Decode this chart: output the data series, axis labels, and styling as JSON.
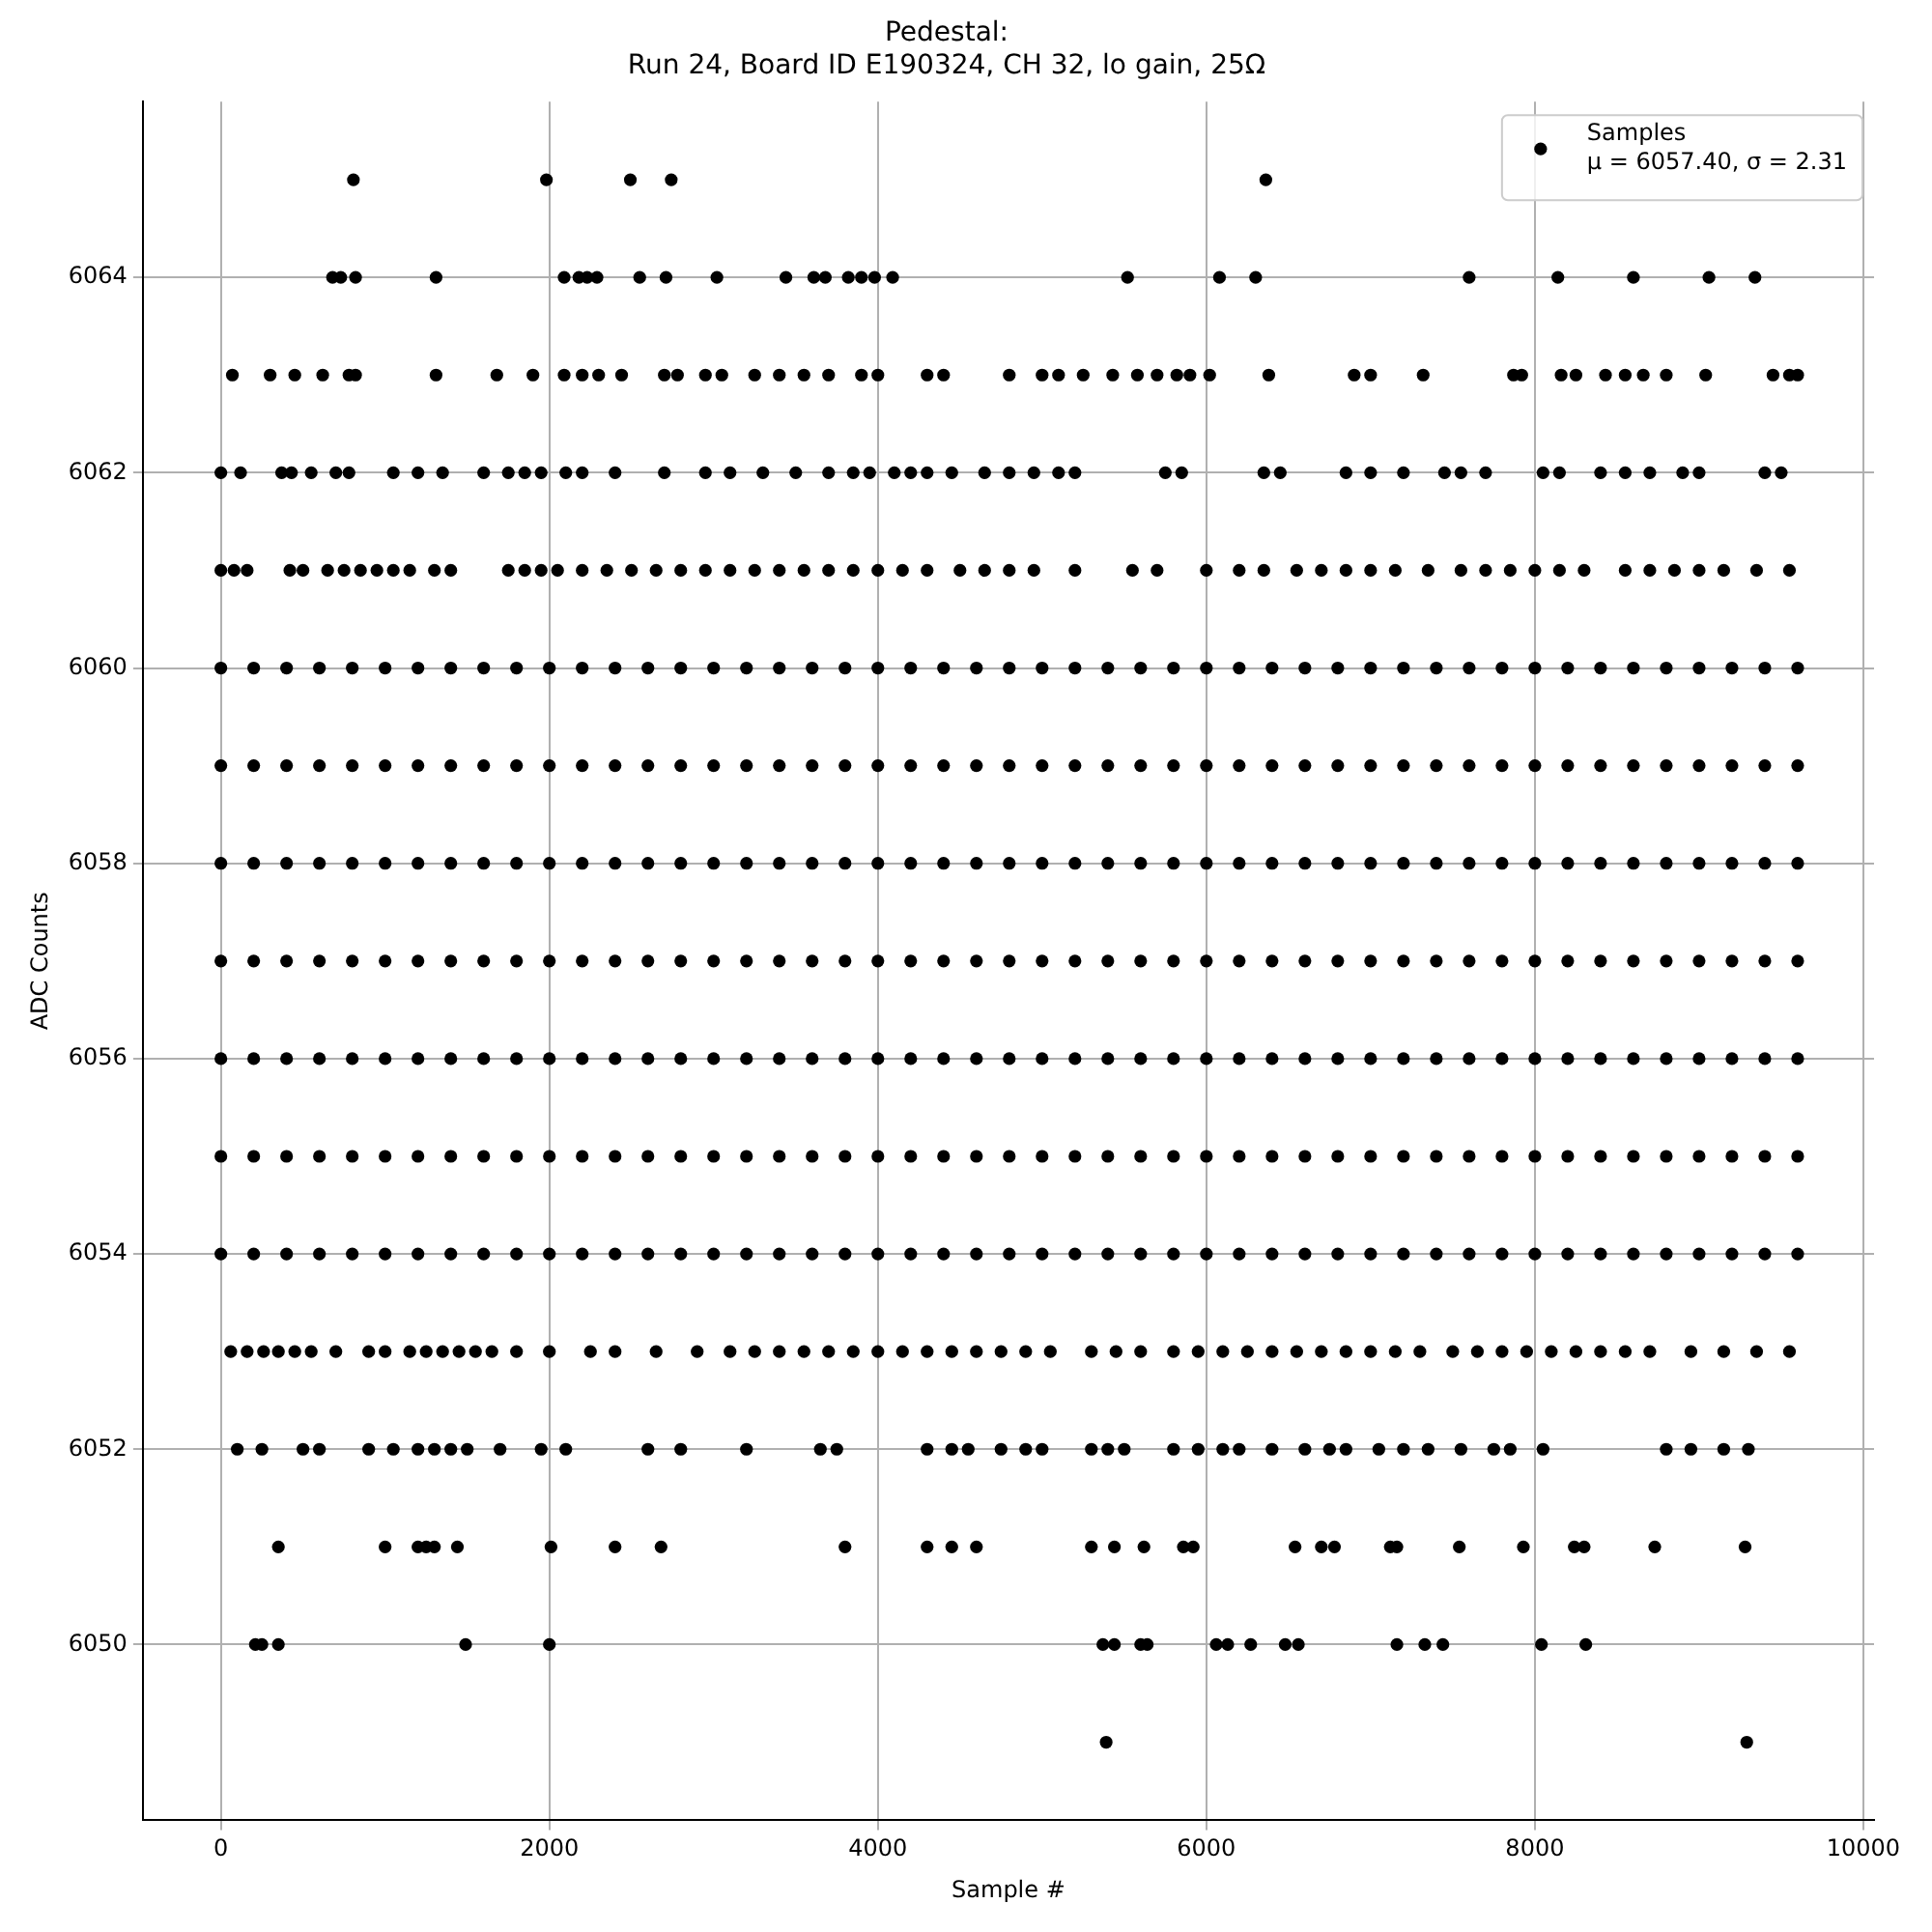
{
  "chart_data": {
    "type": "scatter",
    "title": "Pedestal:\nRun 24, Board ID E190324, CH 32, lo gain, 25Ω",
    "xlabel": "Sample #",
    "ylabel": "ADC Counts",
    "xlim": [
      -475,
      10065
    ],
    "xticks": [
      0,
      2000,
      4000,
      6000,
      8000,
      10000
    ],
    "ylim": [
      6048.2,
      6065.8
    ],
    "yticks": [
      6050,
      6052,
      6054,
      6056,
      6058,
      6060,
      6062,
      6064
    ],
    "grid": true,
    "legend": "top right",
    "marker": "circle",
    "annotations": [
      "μ = 6057.40, σ = 2.31"
    ],
    "series": [
      {
        "name": "Samples",
        "color": "#000000",
        "x": [
          0,
          200,
          400,
          600,
          800,
          1000,
          1200,
          1400,
          1600,
          1800,
          2000,
          2200,
          2400,
          2600,
          2800,
          3000,
          3200,
          3400,
          3600,
          3800,
          4000,
          4200,
          4400,
          4600,
          4800,
          5000,
          5200,
          5400,
          5600,
          5800,
          6000,
          6200,
          6400,
          6600,
          6800,
          7000,
          7200,
          7400,
          7600,
          7800,
          8000,
          8200,
          8400,
          8600,
          8800,
          9000,
          9200,
          9400,
          9600
        ],
        "values": [
          6060,
          6060,
          6060,
          6060,
          6060,
          6060,
          6060,
          6060,
          6060,
          6060,
          6060,
          6060,
          6060,
          6060,
          6060,
          6060,
          6060,
          6060,
          6060,
          6060,
          6060,
          6060,
          6060,
          6060,
          6060,
          6060,
          6060,
          6060,
          6060,
          6060,
          6060,
          6060,
          6060,
          6060,
          6060,
          6060,
          6060,
          6060,
          6060,
          6060,
          6060,
          6060,
          6060,
          6060,
          6060,
          6060,
          6060,
          6060,
          6060
        ]
      },
      {
        "color": "#000000",
        "x": [
          0,
          200,
          400,
          600,
          800,
          1000,
          1200,
          1400,
          1600,
          1800,
          2000,
          2200,
          2400,
          2600,
          2800,
          3000,
          3200,
          3400,
          3600,
          3800,
          4000,
          4200,
          4400,
          4600,
          4800,
          5000,
          5200,
          5400,
          5600,
          5800,
          6000,
          6200,
          6400,
          6600,
          6800,
          7000,
          7200,
          7400,
          7600,
          7800,
          8000,
          8200,
          8400,
          8600,
          8800,
          9000,
          9200,
          9400,
          9600
        ],
        "values": [
          6059,
          6059,
          6059,
          6059,
          6059,
          6059,
          6059,
          6059,
          6059,
          6059,
          6059,
          6059,
          6059,
          6059,
          6059,
          6059,
          6059,
          6059,
          6059,
          6059,
          6059,
          6059,
          6059,
          6059,
          6059,
          6059,
          6059,
          6059,
          6059,
          6059,
          6059,
          6059,
          6059,
          6059,
          6059,
          6059,
          6059,
          6059,
          6059,
          6059,
          6059,
          6059,
          6059,
          6059,
          6059,
          6059,
          6059,
          6059,
          6059
        ]
      },
      {
        "color": "#000000",
        "x": [
          0,
          200,
          400,
          600,
          800,
          1000,
          1200,
          1400,
          1600,
          1800,
          2000,
          2200,
          2400,
          2600,
          2800,
          3000,
          3200,
          3400,
          3600,
          3800,
          4000,
          4200,
          4400,
          4600,
          4800,
          5000,
          5200,
          5400,
          5600,
          5800,
          6000,
          6200,
          6400,
          6600,
          6800,
          7000,
          7200,
          7400,
          7600,
          7800,
          8000,
          8200,
          8400,
          8600,
          8800,
          9000,
          9200,
          9400,
          9600
        ],
        "values": [
          6058,
          6058,
          6058,
          6058,
          6058,
          6058,
          6058,
          6058,
          6058,
          6058,
          6058,
          6058,
          6058,
          6058,
          6058,
          6058,
          6058,
          6058,
          6058,
          6058,
          6058,
          6058,
          6058,
          6058,
          6058,
          6058,
          6058,
          6058,
          6058,
          6058,
          6058,
          6058,
          6058,
          6058,
          6058,
          6058,
          6058,
          6058,
          6058,
          6058,
          6058,
          6058,
          6058,
          6058,
          6058,
          6058,
          6058,
          6058,
          6058
        ]
      },
      {
        "color": "#000000",
        "x": [
          0,
          200,
          400,
          600,
          800,
          1000,
          1200,
          1400,
          1600,
          1800,
          2000,
          2200,
          2400,
          2600,
          2800,
          3000,
          3200,
          3400,
          3600,
          3800,
          4000,
          4200,
          4400,
          4600,
          4800,
          5000,
          5200,
          5400,
          5600,
          5800,
          6000,
          6200,
          6400,
          6600,
          6800,
          7000,
          7200,
          7400,
          7600,
          7800,
          8000,
          8200,
          8400,
          8600,
          8800,
          9000,
          9200,
          9400,
          9600
        ],
        "values": [
          6057,
          6057,
          6057,
          6057,
          6057,
          6057,
          6057,
          6057,
          6057,
          6057,
          6057,
          6057,
          6057,
          6057,
          6057,
          6057,
          6057,
          6057,
          6057,
          6057,
          6057,
          6057,
          6057,
          6057,
          6057,
          6057,
          6057,
          6057,
          6057,
          6057,
          6057,
          6057,
          6057,
          6057,
          6057,
          6057,
          6057,
          6057,
          6057,
          6057,
          6057,
          6057,
          6057,
          6057,
          6057,
          6057,
          6057,
          6057,
          6057
        ]
      },
      {
        "color": "#000000",
        "x": [
          0,
          200,
          400,
          600,
          800,
          1000,
          1200,
          1400,
          1600,
          1800,
          2000,
          2200,
          2400,
          2600,
          2800,
          3000,
          3200,
          3400,
          3600,
          3800,
          4000,
          4200,
          4400,
          4600,
          4800,
          5000,
          5200,
          5400,
          5600,
          5800,
          6000,
          6200,
          6400,
          6600,
          6800,
          7000,
          7200,
          7400,
          7600,
          7800,
          8000,
          8200,
          8400,
          8600,
          8800,
          9000,
          9200,
          9400,
          9600
        ],
        "values": [
          6056,
          6056,
          6056,
          6056,
          6056,
          6056,
          6056,
          6056,
          6056,
          6056,
          6056,
          6056,
          6056,
          6056,
          6056,
          6056,
          6056,
          6056,
          6056,
          6056,
          6056,
          6056,
          6056,
          6056,
          6056,
          6056,
          6056,
          6056,
          6056,
          6056,
          6056,
          6056,
          6056,
          6056,
          6056,
          6056,
          6056,
          6056,
          6056,
          6056,
          6056,
          6056,
          6056,
          6056,
          6056,
          6056,
          6056,
          6056,
          6056
        ]
      },
      {
        "color": "#000000",
        "x": [
          0,
          200,
          400,
          600,
          800,
          1000,
          1200,
          1400,
          1600,
          1800,
          2000,
          2200,
          2400,
          2600,
          2800,
          3000,
          3200,
          3400,
          3600,
          3800,
          4000,
          4200,
          4400,
          4600,
          4800,
          5000,
          5200,
          5400,
          5600,
          5800,
          6000,
          6200,
          6400,
          6600,
          6800,
          7000,
          7200,
          7400,
          7600,
          7800,
          8000,
          8200,
          8400,
          8600,
          8800,
          9000,
          9200,
          9400,
          9600
        ],
        "values": [
          6055,
          6055,
          6055,
          6055,
          6055,
          6055,
          6055,
          6055,
          6055,
          6055,
          6055,
          6055,
          6055,
          6055,
          6055,
          6055,
          6055,
          6055,
          6055,
          6055,
          6055,
          6055,
          6055,
          6055,
          6055,
          6055,
          6055,
          6055,
          6055,
          6055,
          6055,
          6055,
          6055,
          6055,
          6055,
          6055,
          6055,
          6055,
          6055,
          6055,
          6055,
          6055,
          6055,
          6055,
          6055,
          6055,
          6055,
          6055,
          6055
        ]
      },
      {
        "color": "#000000",
        "x": [
          0,
          200,
          400,
          600,
          800,
          1000,
          1200,
          1400,
          1600,
          1800,
          2000,
          2200,
          2400,
          2600,
          2800,
          3000,
          3200,
          3400,
          3600,
          3800,
          4000,
          4200,
          4400,
          4600,
          4800,
          5000,
          5200,
          5400,
          5600,
          5800,
          6000,
          6200,
          6400,
          6600,
          6800,
          7000,
          7200,
          7400,
          7600,
          7800,
          8000,
          8200,
          8400,
          8600,
          8800,
          9000,
          9200,
          9400,
          9600
        ],
        "values": [
          6054,
          6054,
          6054,
          6054,
          6054,
          6054,
          6054,
          6054,
          6054,
          6054,
          6054,
          6054,
          6054,
          6054,
          6054,
          6054,
          6054,
          6054,
          6054,
          6054,
          6054,
          6054,
          6054,
          6054,
          6054,
          6054,
          6054,
          6054,
          6054,
          6054,
          6054,
          6054,
          6054,
          6054,
          6054,
          6054,
          6054,
          6054,
          6054,
          6054,
          6054,
          6054,
          6054,
          6054,
          6054,
          6054,
          6054,
          6054,
          6054
        ]
      },
      {
        "color": "#000000",
        "x": [
          807,
          1982,
          2493,
          2742,
          6362
        ],
        "values": [
          6065,
          6065,
          6065,
          6065,
          6065
        ]
      },
      {
        "color": "#000000",
        "x": [
          680,
          730,
          820,
          1310,
          2090,
          2180,
          2230,
          2290,
          2550,
          2710,
          3020,
          3440,
          3610,
          3680,
          3820,
          3900,
          3980,
          4090,
          5520,
          6080,
          6300,
          7600,
          8140,
          8600,
          9060,
          9340
        ],
        "values": [
          6064,
          6064,
          6064,
          6064,
          6064,
          6064,
          6064,
          6064,
          6064,
          6064,
          6064,
          6064,
          6064,
          6064,
          6064,
          6064,
          6064,
          6064,
          6064,
          6064,
          6064,
          6064,
          6064,
          6064,
          6064,
          6064
        ]
      },
      {
        "color": "#000000",
        "x": [
          70,
          300,
          450,
          620,
          780,
          820,
          1310,
          1680,
          1900,
          2090,
          2200,
          2300,
          2440,
          2700,
          2780,
          2950,
          3050,
          3250,
          3400,
          3550,
          3700,
          3900,
          4000,
          4300,
          4400,
          4800,
          5000,
          5100,
          5250,
          5430,
          5580,
          5700,
          5820,
          5900,
          6020,
          6380,
          6900,
          7000,
          7320,
          7870,
          7920,
          8160,
          8250,
          8430,
          8550,
          8660,
          8800,
          9040,
          9450,
          9550,
          9600
        ],
        "values": [
          6063,
          6063,
          6063,
          6063,
          6063,
          6063,
          6063,
          6063,
          6063,
          6063,
          6063,
          6063,
          6063,
          6063,
          6063,
          6063,
          6063,
          6063,
          6063,
          6063,
          6063,
          6063,
          6063,
          6063,
          6063,
          6063,
          6063,
          6063,
          6063,
          6063,
          6063,
          6063,
          6063,
          6063,
          6063,
          6063,
          6063,
          6063,
          6063,
          6063,
          6063,
          6063,
          6063,
          6063,
          6063,
          6063,
          6063,
          6063,
          6063,
          6063,
          6063
        ]
      },
      {
        "color": "#000000",
        "x": [
          0,
          120,
          370,
          430,
          550,
          700,
          780,
          1050,
          1200,
          1350,
          1600,
          1750,
          1850,
          1950,
          2100,
          2200,
          2400,
          2700,
          2950,
          3100,
          3300,
          3500,
          3700,
          3850,
          3950,
          4100,
          4200,
          4300,
          4450,
          4650,
          4800,
          4950,
          5100,
          5200,
          5750,
          5850,
          6350,
          6450,
          6850,
          7000,
          7200,
          7450,
          7550,
          7700,
          8050,
          8150,
          8400,
          8550,
          8700,
          8900,
          9000,
          9400,
          9500
        ],
        "values": [
          6062,
          6062,
          6062,
          6062,
          6062,
          6062,
          6062,
          6062,
          6062,
          6062,
          6062,
          6062,
          6062,
          6062,
          6062,
          6062,
          6062,
          6062,
          6062,
          6062,
          6062,
          6062,
          6062,
          6062,
          6062,
          6062,
          6062,
          6062,
          6062,
          6062,
          6062,
          6062,
          6062,
          6062,
          6062,
          6062,
          6062,
          6062,
          6062,
          6062,
          6062,
          6062,
          6062,
          6062,
          6062,
          6062,
          6062,
          6062,
          6062,
          6062,
          6062,
          6062,
          6062
        ]
      },
      {
        "color": "#000000",
        "x": [
          0,
          80,
          160,
          420,
          500,
          650,
          750,
          850,
          950,
          1050,
          1150,
          1300,
          1400,
          1750,
          1850,
          1950,
          2050,
          2200,
          2350,
          2500,
          2650,
          2800,
          2950,
          3100,
          3250,
          3400,
          3550,
          3700,
          3850,
          4000,
          4150,
          4300,
          4500,
          4650,
          4800,
          4950,
          5200,
          5550,
          5700,
          6000,
          6200,
          6350,
          6550,
          6700,
          6850,
          7000,
          7150,
          7350,
          7550,
          7700,
          7850,
          8000,
          8150,
          8300,
          8550,
          8700,
          8850,
          9000,
          9150,
          9350,
          9550
        ],
        "values": [
          6061,
          6061,
          6061,
          6061,
          6061,
          6061,
          6061,
          6061,
          6061,
          6061,
          6061,
          6061,
          6061,
          6061,
          6061,
          6061,
          6061,
          6061,
          6061,
          6061,
          6061,
          6061,
          6061,
          6061,
          6061,
          6061,
          6061,
          6061,
          6061,
          6061,
          6061,
          6061,
          6061,
          6061,
          6061,
          6061,
          6061,
          6061,
          6061,
          6061,
          6061,
          6061,
          6061,
          6061,
          6061,
          6061,
          6061,
          6061,
          6061,
          6061,
          6061,
          6061,
          6061,
          6061,
          6061,
          6061,
          6061,
          6061,
          6061,
          6061,
          6061
        ]
      },
      {
        "color": "#000000",
        "x": [
          60,
          160,
          260,
          350,
          450,
          550,
          700,
          900,
          1000,
          1150,
          1250,
          1350,
          1450,
          1550,
          1650,
          1800,
          2000,
          2250,
          2400,
          2650,
          2900,
          3100,
          3250,
          3400,
          3550,
          3700,
          3850,
          4000,
          4150,
          4300,
          4450,
          4600,
          4750,
          4900,
          5050,
          5300,
          5450,
          5600,
          5800,
          5950,
          6100,
          6250,
          6400,
          6550,
          6700,
          6850,
          7000,
          7150,
          7300,
          7500,
          7650,
          7800,
          7950,
          8100,
          8250,
          8400,
          8550,
          8700,
          8950,
          9150,
          9350,
          9550
        ],
        "values": [
          6053,
          6053,
          6053,
          6053,
          6053,
          6053,
          6053,
          6053,
          6053,
          6053,
          6053,
          6053,
          6053,
          6053,
          6053,
          6053,
          6053,
          6053,
          6053,
          6053,
          6053,
          6053,
          6053,
          6053,
          6053,
          6053,
          6053,
          6053,
          6053,
          6053,
          6053,
          6053,
          6053,
          6053,
          6053,
          6053,
          6053,
          6053,
          6053,
          6053,
          6053,
          6053,
          6053,
          6053,
          6053,
          6053,
          6053,
          6053,
          6053,
          6053,
          6053,
          6053,
          6053,
          6053,
          6053,
          6053,
          6053,
          6053,
          6053,
          6053,
          6053,
          6053
        ]
      },
      {
        "color": "#000000",
        "x": [
          100,
          250,
          500,
          600,
          900,
          1050,
          1200,
          1300,
          1400,
          1500,
          1700,
          1950,
          2100,
          2600,
          2800,
          3200,
          3650,
          3750,
          4300,
          4450,
          4550,
          4750,
          4900,
          5000,
          5300,
          5400,
          5500,
          5800,
          5950,
          6100,
          6200,
          6400,
          6600,
          6750,
          6850,
          7050,
          7200,
          7350,
          7550,
          7750,
          7850,
          8050,
          8800,
          8950,
          9150,
          9300
        ],
        "values": [
          6052,
          6052,
          6052,
          6052,
          6052,
          6052,
          6052,
          6052,
          6052,
          6052,
          6052,
          6052,
          6052,
          6052,
          6052,
          6052,
          6052,
          6052,
          6052,
          6052,
          6052,
          6052,
          6052,
          6052,
          6052,
          6052,
          6052,
          6052,
          6052,
          6052,
          6052,
          6052,
          6052,
          6052,
          6052,
          6052,
          6052,
          6052,
          6052,
          6052,
          6052,
          6052,
          6052,
          6052,
          6052,
          6052
        ]
      },
      {
        "color": "#000000",
        "x": [
          350,
          1000,
          1200,
          1250,
          1300,
          1440,
          2010,
          2400,
          2680,
          3800,
          4300,
          4450,
          4600,
          5300,
          5440,
          5620,
          5860,
          5920,
          6540,
          6700,
          6780,
          7120,
          7160,
          7540,
          7930,
          8240,
          8300,
          8730,
          9280
        ],
        "values": [
          6051,
          6051,
          6051,
          6051,
          6051,
          6051,
          6051,
          6051,
          6051,
          6051,
          6051,
          6051,
          6051,
          6051,
          6051,
          6051,
          6051,
          6051,
          6051,
          6051,
          6051,
          6051,
          6051,
          6051,
          6051,
          6051,
          6051,
          6051,
          6051
        ]
      },
      {
        "color": "#000000",
        "x": [
          210,
          250,
          350,
          1490,
          2000,
          5370,
          5440,
          5600,
          5640,
          6060,
          6130,
          6270,
          6480,
          6560,
          7160,
          7330,
          7440,
          8040,
          8310
        ],
        "values": [
          6050,
          6050,
          6050,
          6050,
          6050,
          6050,
          6050,
          6050,
          6050,
          6050,
          6050,
          6050,
          6050,
          6050,
          6050,
          6050,
          6050,
          6050,
          6050
        ]
      },
      {
        "color": "#000000",
        "x": [
          5390,
          9290
        ],
        "values": [
          6049,
          6049
        ]
      }
    ]
  }
}
